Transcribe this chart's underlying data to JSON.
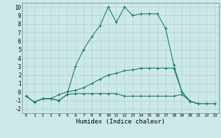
{
  "title": "",
  "xlabel": "Humidex (Indice chaleur)",
  "background_color": "#cce9e9",
  "line_color": "#1a7a6e",
  "grid_color": "#b0d0d0",
  "xlim": [
    -0.5,
    23.5
  ],
  "ylim": [
    -2.5,
    10.5
  ],
  "xticks": [
    0,
    1,
    2,
    3,
    4,
    5,
    6,
    7,
    8,
    9,
    10,
    11,
    12,
    13,
    14,
    15,
    16,
    17,
    18,
    19,
    20,
    21,
    22,
    23
  ],
  "yticks": [
    -2,
    -1,
    0,
    1,
    2,
    3,
    4,
    5,
    6,
    7,
    8,
    9,
    10
  ],
  "series": [
    {
      "x": [
        0,
        1,
        2,
        3,
        4,
        5,
        6,
        7,
        8,
        9,
        10,
        11,
        12,
        13,
        14,
        15,
        16,
        17,
        18,
        19,
        20,
        21,
        22,
        23
      ],
      "y": [
        -0.5,
        -1.2,
        -0.8,
        -0.8,
        -1.0,
        -0.3,
        3.0,
        5.0,
        6.5,
        7.8,
        10.0,
        8.2,
        10.0,
        9.0,
        9.2,
        9.2,
        9.2,
        7.5,
        3.2,
        0.0,
        -1.1,
        -1.4,
        -1.4,
        -1.4
      ],
      "linestyle": "-"
    },
    {
      "x": [
        0,
        1,
        2,
        3,
        4,
        5,
        6,
        7,
        8,
        9,
        10,
        11,
        12,
        13,
        14,
        15,
        16,
        17,
        18,
        19,
        20,
        21,
        22,
        23
      ],
      "y": [
        -0.5,
        -1.2,
        -0.8,
        -0.8,
        -1.0,
        -0.3,
        -0.2,
        -0.2,
        -0.2,
        -0.2,
        -0.2,
        -0.2,
        -0.5,
        -0.5,
        -0.5,
        -0.5,
        -0.5,
        -0.5,
        -0.5,
        -0.3,
        -1.1,
        -1.4,
        -1.4,
        -1.4
      ],
      "linestyle": "-"
    },
    {
      "x": [
        0,
        1,
        2,
        3,
        4,
        5,
        6,
        7,
        8,
        9,
        10,
        11,
        12,
        13,
        14,
        15,
        16,
        17,
        18,
        19,
        20,
        21,
        22,
        23
      ],
      "y": [
        -0.5,
        -1.2,
        -0.8,
        -0.8,
        -0.3,
        0.0,
        0.2,
        0.5,
        1.0,
        1.5,
        2.0,
        2.2,
        2.5,
        2.6,
        2.8,
        2.8,
        2.8,
        2.8,
        2.8,
        0.0,
        -1.1,
        -1.4,
        -1.4,
        -1.4
      ],
      "linestyle": "-"
    }
  ]
}
